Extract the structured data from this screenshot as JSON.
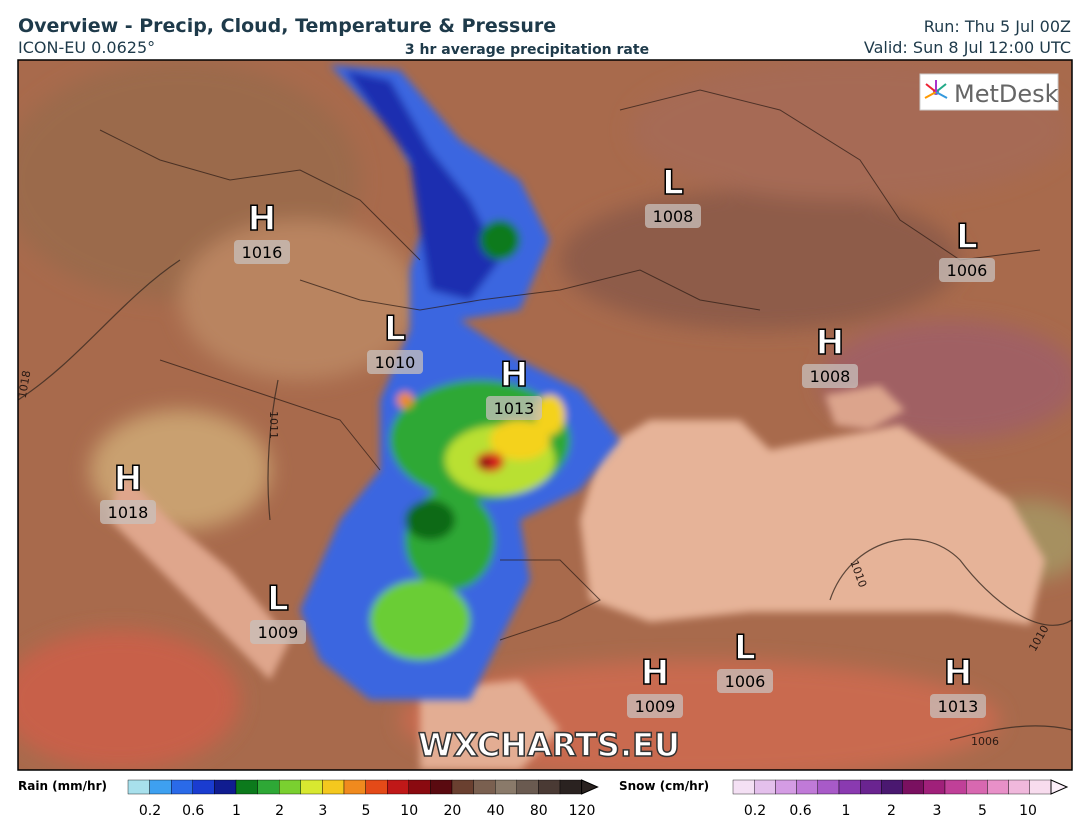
{
  "header": {
    "title": "Overview - Precip, Cloud, Temperature & Pressure",
    "model": "ICON-EU 0.0625°",
    "subtitle": "3 hr average precipitation rate",
    "run": "Run: Thu 5 Jul 00Z",
    "valid": "Valid: Sun 8 Jul 12:00 UTC"
  },
  "logo": "MetDesk",
  "watermark": "WXCHARTS.EU",
  "pressure_centers": [
    {
      "type": "H",
      "value": 1016
    },
    {
      "type": "L",
      "value": 1008
    },
    {
      "type": "L",
      "value": 1006
    },
    {
      "type": "L",
      "value": 1010
    },
    {
      "type": "H",
      "value": 1013
    },
    {
      "type": "H",
      "value": 1008
    },
    {
      "type": "H",
      "value": 1018
    },
    {
      "type": "L",
      "value": 1009
    },
    {
      "type": "H",
      "value": 1009
    },
    {
      "type": "L",
      "value": 1006
    },
    {
      "type": "H",
      "value": 1013
    }
  ],
  "isobar_labels": [
    1010,
    1010,
    1006,
    1011,
    1018
  ],
  "legend": {
    "rain": {
      "title": "Rain (mm/hr)",
      "ticks": [
        0.2,
        0.6,
        1,
        2,
        3,
        5,
        10,
        20,
        40,
        80,
        120
      ]
    },
    "snow": {
      "title": "Snow (cm/hr)",
      "ticks": [
        0.2,
        0.6,
        1,
        2,
        3,
        5,
        10
      ]
    }
  }
}
